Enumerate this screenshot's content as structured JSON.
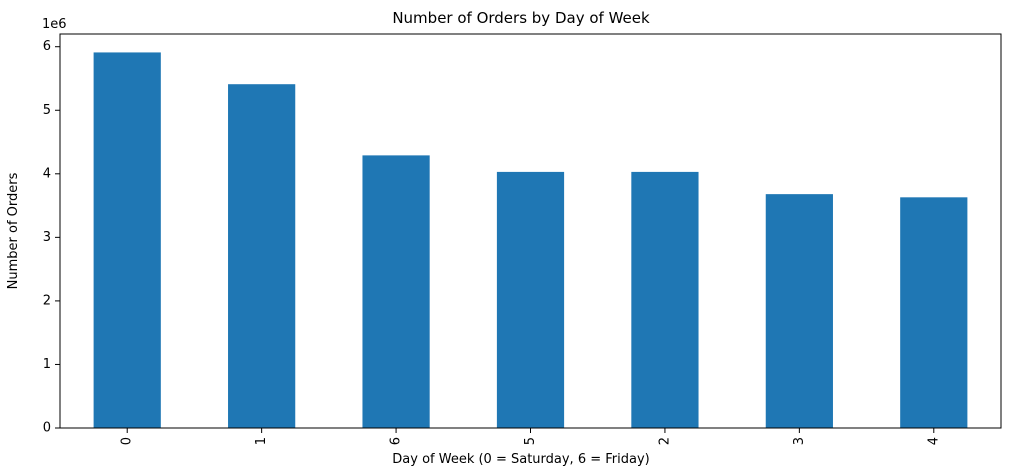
{
  "chart_data": {
    "type": "bar",
    "title": "Number of Orders by Day of Week",
    "xlabel": "Day of Week (0 = Saturday, 6 = Friday)",
    "ylabel": "Number of Orders",
    "y_scale_label": "1e6",
    "categories": [
      "0",
      "1",
      "6",
      "5",
      "2",
      "3",
      "4"
    ],
    "values": [
      5910000,
      5410000,
      4290000,
      4030000,
      4030000,
      3680000,
      3630000
    ],
    "ylim": [
      0,
      6200000
    ],
    "yticks": [
      0,
      1000000,
      2000000,
      3000000,
      4000000,
      5000000,
      6000000
    ],
    "ytick_labels": [
      "0",
      "1",
      "2",
      "3",
      "4",
      "5",
      "6"
    ],
    "grid": false,
    "legend": "none",
    "bar_color": "#1f77b4"
  }
}
